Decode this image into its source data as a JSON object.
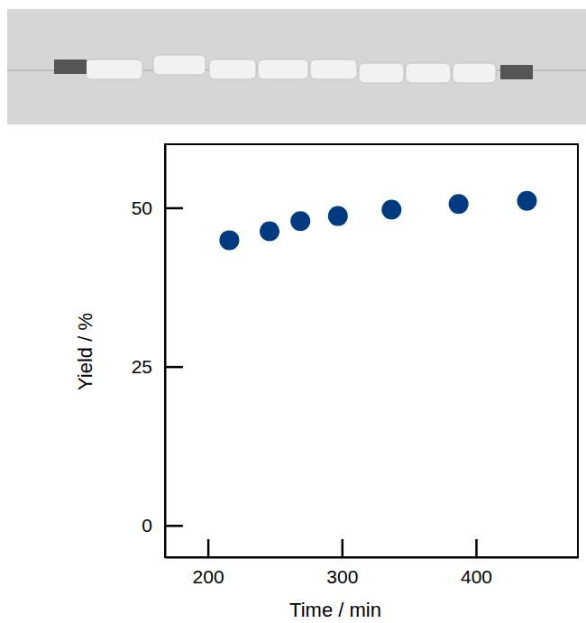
{
  "chart_data": {
    "type": "scatter",
    "x_label": "Time / min",
    "y_label": "Yield / %",
    "x": [
      216,
      246,
      269,
      297,
      337,
      387,
      438
    ],
    "values": [
      44.9,
      46.3,
      47.9,
      48.7,
      49.7,
      50.6,
      51.1
    ],
    "color": "#003a80",
    "marker": "circle",
    "xlim": [
      168,
      476
    ],
    "xticks": [
      200,
      300,
      400
    ],
    "ylim": [
      -5,
      60
    ],
    "yticks": [
      0,
      25,
      50
    ],
    "grid": false
  }
}
